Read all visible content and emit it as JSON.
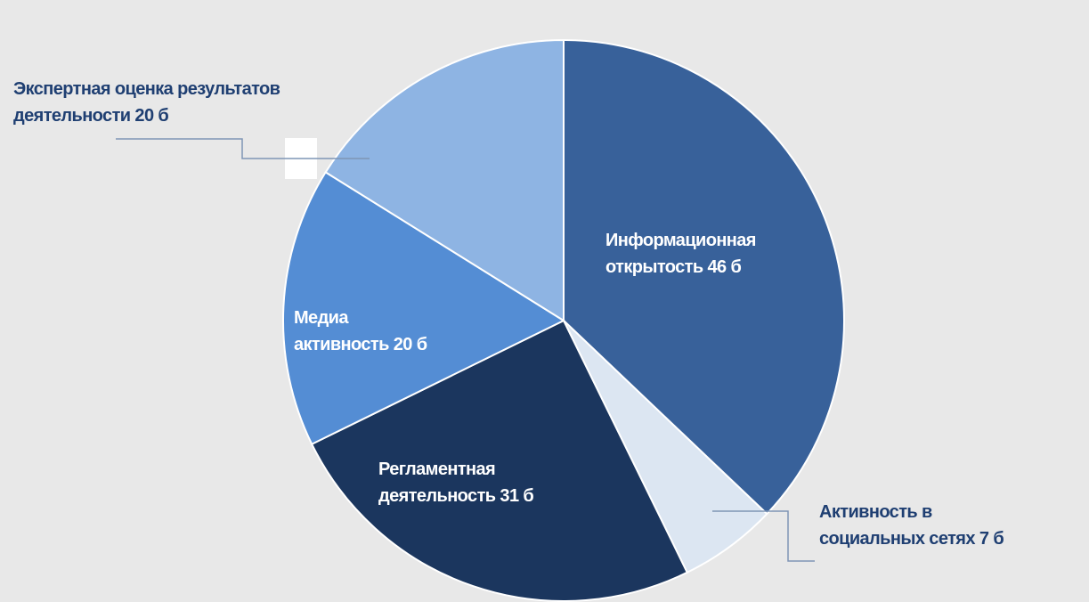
{
  "chart_data": {
    "type": "pie",
    "categories": [
      "Информационная\nоткрытость",
      "Активность в\nсоциальных сетях",
      "Регламентная\nдеятельность",
      "Медиа\nактивность",
      "Экспертная оценка результатов\nдеятельности"
    ],
    "values": [
      46,
      7,
      31,
      20,
      20
    ],
    "value_labels": [
      "46 б",
      "7 б",
      "31 б",
      "20 б",
      "20 б"
    ],
    "colors": [
      "#38619a",
      "#dce6f2",
      "#1b365e",
      "#548dd4",
      "#8eb4e3"
    ]
  }
}
